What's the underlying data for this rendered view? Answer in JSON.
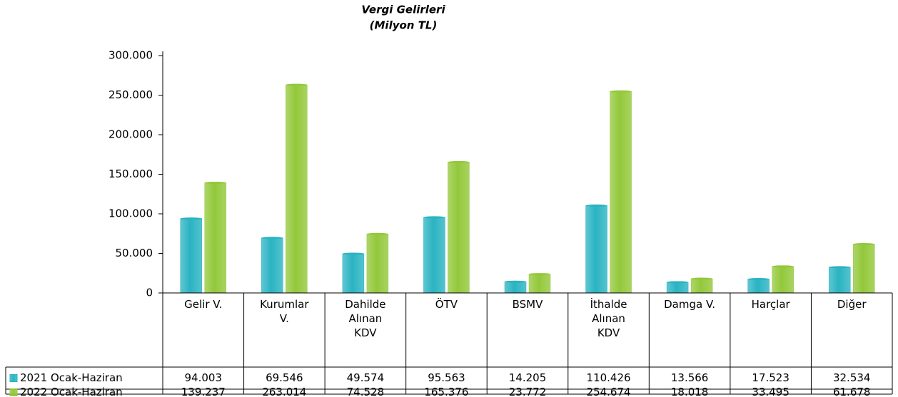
{
  "chart_data": {
    "type": "bar",
    "title": "Vergi Gelirleri",
    "subtitle": "(Milyon TL)",
    "categories": [
      "Gelir V.",
      "Kurumlar V.",
      "Dahilde Alınan KDV",
      "ÖTV",
      "BSMV",
      "İthalde Alınan KDV",
      "Damga V.",
      "Harçlar",
      "Diğer"
    ],
    "series": [
      {
        "name": "2021 Ocak-Haziran",
        "color": "#2ab3c2",
        "values": [
          94003,
          69546,
          49574,
          95563,
          14205,
          110426,
          13566,
          17523,
          32534
        ],
        "value_labels": [
          "94.003",
          "69.546",
          "49.574",
          "95.563",
          "14.205",
          "110.426",
          "13.566",
          "17.523",
          "32.534"
        ]
      },
      {
        "name": "2022 Ocak-Haziran",
        "color": "#93c83a",
        "values": [
          139237,
          263014,
          74528,
          165376,
          23772,
          254674,
          18018,
          33495,
          61678
        ],
        "value_labels": [
          "139.237",
          "263.014",
          "74.528",
          "165.376",
          "23.772",
          "254.674",
          "18.018",
          "33.495",
          "61.678"
        ]
      }
    ],
    "ylim": [
      0,
      300000
    ],
    "yticks": [
      0,
      {
        "value": 50000,
        "label": "50.000"
      },
      {
        "value": 100000,
        "label": "100.000"
      },
      {
        "value": 150000,
        "label": "150.000"
      },
      {
        "value": 200000,
        "label": "200.000"
      },
      {
        "value": 250000,
        "label": "250.000"
      },
      {
        "value": 300000,
        "label": "300.000"
      }
    ]
  }
}
